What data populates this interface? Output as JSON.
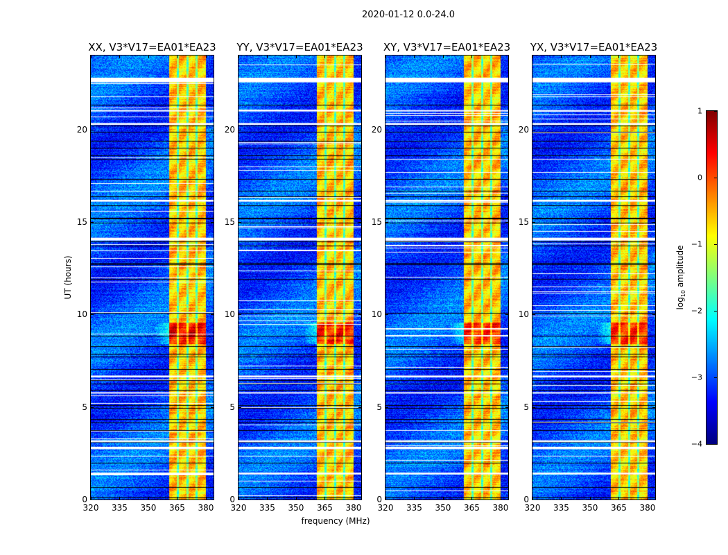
{
  "chart_data": {
    "type": "heatmap",
    "title": "2020-01-12 0.0-24.0",
    "xlabel": "frequency (MHz)",
    "ylabel": "UT (hours)",
    "xlim": [
      320,
      384
    ],
    "ylim": [
      0,
      24
    ],
    "xticks": [
      320,
      335,
      350,
      365,
      380
    ],
    "yticks": [
      0,
      5,
      10,
      15,
      20
    ],
    "panels": [
      {
        "title": "XX, V3*V17=EA01*EA23",
        "band_strength": 1.0
      },
      {
        "title": "YY, V3*V17=EA01*EA23",
        "band_strength": 0.9
      },
      {
        "title": "XY, V3*V17=EA01*EA23",
        "band_strength": 0.85
      },
      {
        "title": "YX, V3*V17=EA01*EA23",
        "band_strength": 0.8
      }
    ],
    "background_log_amplitude": -3.0,
    "bright_band_mhz": [
      360.5,
      380
    ],
    "bright_band_log_amplitude": -0.6,
    "strong_interval_ut": [
      8.4,
      9.6
    ],
    "flagged_intervals_ut": [
      [
        22.55,
        22.8
      ],
      [
        20.25,
        20.35
      ],
      [
        14.0,
        14.15
      ],
      [
        2.72,
        2.85
      ],
      [
        1.35,
        1.45
      ],
      [
        3.1,
        3.2
      ],
      [
        6.6,
        6.7
      ],
      [
        16.1,
        16.2
      ],
      [
        21.0,
        21.05
      ],
      [
        5.75,
        5.8
      ]
    ],
    "colorbar": {
      "label": "log10 amplitude",
      "label_main": "log",
      "label_sub": "10",
      "label_rest": " amplitude",
      "range": [
        -4,
        1
      ],
      "ticks": [
        "1",
        "0",
        "−1",
        "−2",
        "−3",
        "−4"
      ],
      "tick_values": [
        1,
        0,
        -1,
        -2,
        -3,
        -4
      ],
      "colormap": "jet"
    }
  }
}
